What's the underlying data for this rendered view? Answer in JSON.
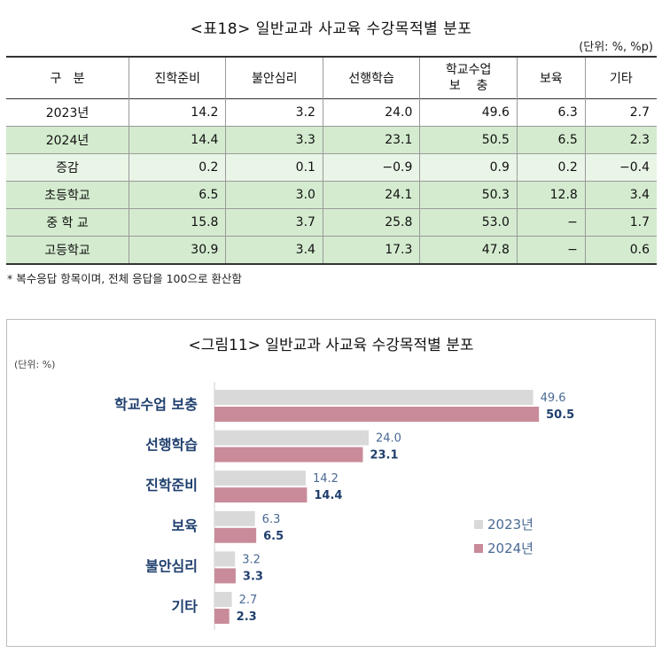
{
  "table": {
    "title": "<표18> 일반교과 사교육 수강목적별 분포",
    "unit": "(단위: %, %p)",
    "corner_label": "구   분",
    "headers": [
      "진학준비",
      "불안심리",
      "선행학습",
      "학교수업 보 충",
      "보육",
      "기타"
    ],
    "header_split": [
      "학교수업",
      "보    충"
    ],
    "rows": [
      {
        "label": "2023년",
        "values": [
          "14.2",
          "3.2",
          "24.0",
          "49.6",
          "6.3",
          "2.7"
        ],
        "style": "plain"
      },
      {
        "label": "2024년",
        "values": [
          "14.4",
          "3.3",
          "23.1",
          "50.5",
          "6.5",
          "2.3"
        ],
        "style": "green"
      },
      {
        "label": "증감",
        "values": [
          "0.2",
          "0.1",
          "−0.9",
          "0.9",
          "0.2",
          "−0.4"
        ],
        "style": "lightgreen"
      },
      {
        "label": "초등학교",
        "values": [
          "6.5",
          "3.0",
          "24.1",
          "50.3",
          "12.8",
          "3.4"
        ],
        "style": "green"
      },
      {
        "label": "중 학 교",
        "values": [
          "15.8",
          "3.7",
          "25.8",
          "53.0",
          "−",
          "1.7"
        ],
        "style": "green"
      },
      {
        "label": "고등학교",
        "values": [
          "30.9",
          "3.4",
          "17.3",
          "47.8",
          "−",
          "0.6"
        ],
        "style": "green"
      }
    ],
    "note": "* 복수응답 항목이며, 전체 응답을 100으로 환산함"
  },
  "figure": {
    "title": "<그림11> 일반교과 사교육 수강목적별 분포",
    "unit": "(단위: %)"
  },
  "chart_data": {
    "type": "bar",
    "orientation": "horizontal",
    "categories": [
      "학교수업 보충",
      "선행학습",
      "진학준비",
      "보육",
      "불안심리",
      "기타"
    ],
    "series": [
      {
        "name": "2023년",
        "values": [
          49.6,
          24.0,
          14.2,
          6.3,
          3.2,
          2.7
        ],
        "color": "#d9d9d9"
      },
      {
        "name": "2024년",
        "values": [
          50.5,
          23.1,
          14.4,
          6.5,
          3.3,
          2.3
        ],
        "color": "#c98b99"
      }
    ],
    "xlim": [
      0,
      60
    ],
    "legend_position": "right",
    "grid": false
  },
  "colors": {
    "category_label": "#1f3f6e",
    "value_2023": "#4a6a94",
    "value_2024": "#1f3f6e"
  }
}
